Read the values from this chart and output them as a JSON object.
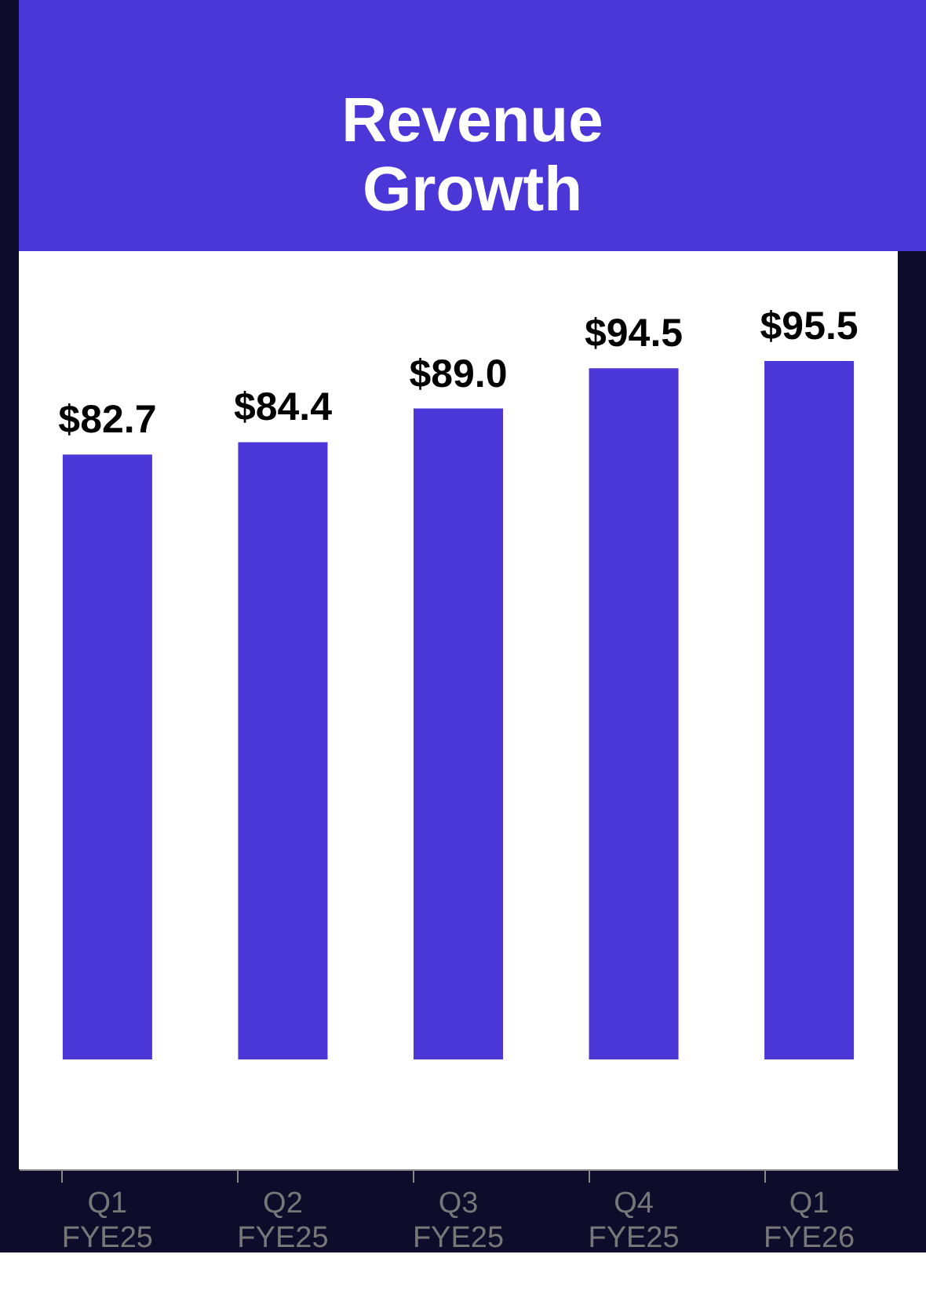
{
  "chart_data": {
    "type": "bar",
    "title": "Revenue Growth",
    "categories": [
      "Q1 FYE25",
      "Q2 FYE25",
      "Q3 FYE25",
      "Q4 FYE25",
      "Q1 FYE26"
    ],
    "values": [
      82.7,
      84.4,
      89.0,
      94.5,
      95.5
    ],
    "value_labels": [
      "$82.7",
      "$84.4",
      "$89.0",
      "$94.5",
      "$95.5"
    ],
    "color": "#4b36d8"
  }
}
